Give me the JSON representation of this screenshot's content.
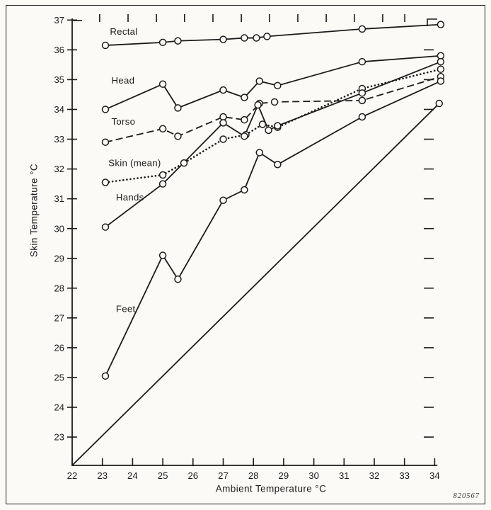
{
  "figure": {
    "code_label": "820567",
    "background": "#fbfaf7",
    "ink_color": "#1b1b1b"
  },
  "chart_data": {
    "type": "line",
    "title": "",
    "xlabel": "Ambient Temperature °C",
    "ylabel": "Skin Temperature °C",
    "xlim": [
      22,
      34.6
    ],
    "ylim": [
      22.05,
      37.15
    ],
    "x_ticks": [
      22,
      23,
      24,
      25,
      26,
      27,
      28,
      29,
      30,
      31,
      32,
      33,
      34
    ],
    "y_ticks": [
      23,
      24,
      25,
      26,
      27,
      28,
      29,
      30,
      31,
      32,
      33,
      34,
      35,
      36,
      37
    ],
    "grid": false,
    "legend_position": "inline-labels",
    "series": [
      {
        "name": "Rectal",
        "line_style": "solid",
        "marker": "open-circle",
        "label_xy": [
          23.25,
          36.62
        ],
        "points": [
          [
            23.1,
            36.15
          ],
          [
            25.0,
            36.25
          ],
          [
            25.5,
            36.3
          ],
          [
            27.0,
            36.35
          ],
          [
            27.7,
            36.4
          ],
          [
            28.1,
            36.4
          ],
          [
            28.45,
            36.45
          ],
          [
            31.6,
            36.7
          ],
          [
            34.2,
            36.85
          ]
        ]
      },
      {
        "name": "Head",
        "line_style": "solid",
        "marker": "open-circle",
        "label_xy": [
          23.3,
          34.97
        ],
        "points": [
          [
            23.1,
            34.0
          ],
          [
            25.0,
            34.85
          ],
          [
            25.5,
            34.05
          ],
          [
            27.0,
            34.65
          ],
          [
            27.7,
            34.4
          ],
          [
            28.2,
            34.95
          ],
          [
            28.8,
            34.8
          ],
          [
            31.6,
            35.6
          ],
          [
            34.2,
            35.8
          ]
        ]
      },
      {
        "name": "Torso",
        "line_style": "dashed",
        "marker": "open-circle",
        "label_xy": [
          23.3,
          33.6
        ],
        "points": [
          [
            23.1,
            32.9
          ],
          [
            25.0,
            33.35
          ],
          [
            25.5,
            33.1
          ],
          [
            27.0,
            33.75
          ],
          [
            27.7,
            33.65
          ],
          [
            28.2,
            34.2
          ],
          [
            28.7,
            34.25
          ],
          [
            31.6,
            34.3
          ],
          [
            34.2,
            35.1
          ]
        ]
      },
      {
        "name": "Skin (mean)",
        "line_style": "dotted",
        "marker": "open-circle",
        "label_xy": [
          23.2,
          32.2
        ],
        "points": [
          [
            23.1,
            31.55
          ],
          [
            25.0,
            31.8
          ],
          [
            25.7,
            32.2
          ],
          [
            27.0,
            33.0
          ],
          [
            27.75,
            33.15
          ],
          [
            28.3,
            33.5
          ],
          [
            28.8,
            33.4
          ],
          [
            31.6,
            34.7
          ],
          [
            34.2,
            35.35
          ]
        ]
      },
      {
        "name": "Hands",
        "line_style": "solid",
        "marker": "open-circle",
        "label_xy": [
          23.45,
          31.05
        ],
        "points": [
          [
            23.1,
            30.05
          ],
          [
            25.0,
            31.5
          ],
          [
            27.0,
            33.55
          ],
          [
            27.7,
            33.1
          ],
          [
            28.15,
            34.15
          ],
          [
            28.5,
            33.3
          ],
          [
            28.8,
            33.45
          ],
          [
            31.6,
            34.55
          ],
          [
            34.2,
            35.6
          ]
        ]
      },
      {
        "name": "Feet",
        "line_style": "solid",
        "marker": "open-circle",
        "label_xy": [
          23.45,
          27.3
        ],
        "points": [
          [
            23.1,
            25.05
          ],
          [
            25.0,
            29.1
          ],
          [
            25.5,
            28.3
          ],
          [
            27.0,
            30.95
          ],
          [
            27.7,
            31.3
          ],
          [
            28.2,
            32.55
          ],
          [
            28.8,
            32.15
          ],
          [
            31.6,
            33.75
          ],
          [
            34.2,
            34.95
          ]
        ]
      }
    ],
    "reference_line": {
      "name": "ambient-equality-line",
      "from": [
        22,
        22.05
      ],
      "to": [
        34.15,
        34.2
      ],
      "end_marker": true
    },
    "right_edge_ticks": [
      23,
      24,
      25,
      26,
      27,
      28,
      29,
      30,
      31,
      32,
      33,
      34,
      35,
      36
    ],
    "top_edge_ticks_x": [
      22.91,
      23.85,
      24.79,
      25.72,
      26.66,
      27.6,
      28.53,
      29.47,
      30.41,
      31.34,
      32.28,
      33.01
    ]
  }
}
